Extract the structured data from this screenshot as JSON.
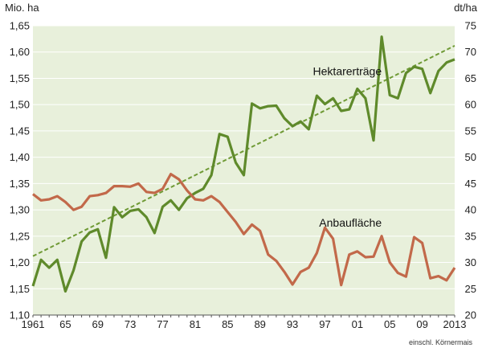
{
  "chart_data": {
    "type": "line",
    "title": "",
    "left_axis": {
      "unit": "Mio. ha",
      "min": 1.1,
      "max": 1.65,
      "step": 0.05,
      "tick_labels": [
        "1,10",
        "1,15",
        "1,20",
        "1,25",
        "1,30",
        "1,35",
        "1,40",
        "1,45",
        "1,50",
        "1,55",
        "1,60",
        "1,65"
      ]
    },
    "right_axis": {
      "unit": "dt/ha",
      "min": 20,
      "max": 75,
      "step": 5,
      "tick_labels": [
        "20",
        "25",
        "30",
        "35",
        "40",
        "45",
        "50",
        "55",
        "60",
        "65",
        "70",
        "75"
      ]
    },
    "x_axis": {
      "min": 1961,
      "max": 2013,
      "tick_labels": [
        "1961",
        "65",
        "69",
        "73",
        "77",
        "81",
        "85",
        "89",
        "93",
        "97",
        "01",
        "05",
        "09",
        "2013"
      ],
      "tick_years": [
        1961,
        1965,
        1969,
        1973,
        1977,
        1981,
        1985,
        1989,
        1993,
        1997,
        2001,
        2005,
        2009,
        2013
      ]
    },
    "grid": true,
    "background": "#e8f0db",
    "years": [
      1961,
      1962,
      1963,
      1964,
      1965,
      1966,
      1967,
      1968,
      1969,
      1970,
      1971,
      1972,
      1973,
      1974,
      1975,
      1976,
      1977,
      1978,
      1979,
      1980,
      1981,
      1982,
      1983,
      1984,
      1985,
      1986,
      1987,
      1988,
      1989,
      1990,
      1991,
      1992,
      1993,
      1994,
      1995,
      1996,
      1997,
      1998,
      1999,
      2000,
      2001,
      2002,
      2003,
      2004,
      2005,
      2006,
      2007,
      2008,
      2009,
      2010,
      2011,
      2012,
      2013
    ],
    "series": [
      {
        "name": "Hektarerträge",
        "axis": "right",
        "color": "#5f8a2b",
        "values": [
          25.5,
          30.5,
          29.0,
          30.5,
          24.5,
          28.5,
          34.0,
          35.7,
          36.3,
          30.9,
          40.5,
          38.6,
          39.8,
          40.1,
          38.6,
          35.6,
          40.6,
          41.8,
          40.0,
          42.2,
          43.2,
          44.0,
          46.6,
          54.4,
          53.9,
          49.0,
          46.6,
          60.2,
          59.3,
          59.7,
          59.8,
          57.4,
          55.9,
          56.8,
          55.3,
          61.7,
          60.1,
          61.2,
          58.8,
          59.1,
          63.0,
          61.2,
          53.2,
          72.9,
          61.8,
          61.2,
          66.0,
          67.2,
          66.8,
          62.2,
          66.4,
          68.0,
          68.6
        ]
      },
      {
        "name": "Anbaufläche",
        "axis": "left",
        "color": "#c2694a",
        "values": [
          1.33,
          1.318,
          1.32,
          1.326,
          1.315,
          1.3,
          1.306,
          1.326,
          1.328,
          1.332,
          1.345,
          1.345,
          1.344,
          1.35,
          1.334,
          1.332,
          1.34,
          1.368,
          1.358,
          1.337,
          1.32,
          1.318,
          1.326,
          1.315,
          1.296,
          1.277,
          1.254,
          1.272,
          1.26,
          1.215,
          1.203,
          1.182,
          1.158,
          1.182,
          1.19,
          1.218,
          1.266,
          1.245,
          1.157,
          1.215,
          1.221,
          1.21,
          1.211,
          1.25,
          1.2,
          1.18,
          1.173,
          1.248,
          1.237,
          1.17,
          1.174,
          1.166,
          1.19
        ]
      }
    ],
    "trend": {
      "series": "Hektarerträge",
      "axis": "right",
      "start": [
        1961,
        31.2
      ],
      "end": [
        2013,
        71.2
      ],
      "color": "#6f9a35",
      "style": "dashed"
    },
    "annotations": [
      {
        "text": "Hektarerträge",
        "year": 2004,
        "axis": "right",
        "value": 65.6
      },
      {
        "text": "Anbaufläche",
        "year": 2004,
        "axis": "left",
        "value": 1.268
      }
    ],
    "footnote": "einschl. Körnermais"
  }
}
